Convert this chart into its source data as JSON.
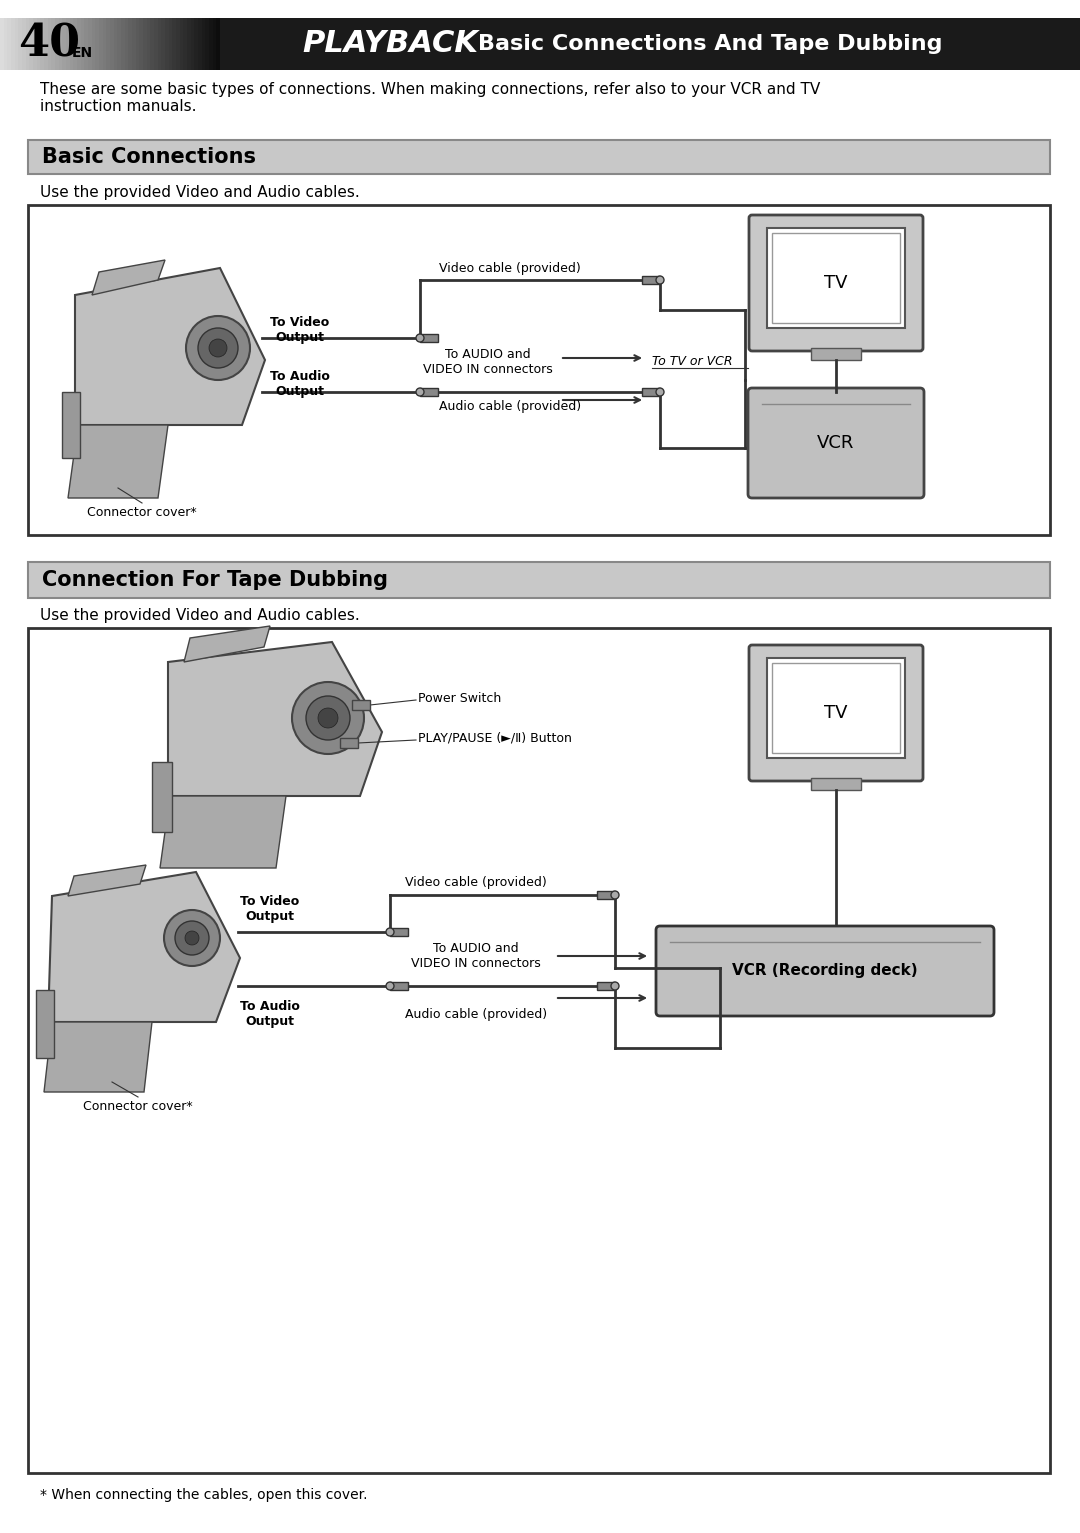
{
  "page_bg": "#ffffff",
  "header_page_num": "40",
  "header_page_sub": "EN",
  "header_playback": "PLAYBACK",
  "header_subtitle": " Basic Connections And Tape Dubbing",
  "intro_text": "These are some basic types of connections. When making connections, refer also to your VCR and TV\ninstruction manuals.",
  "section1_title": "Basic Connections",
  "section1_subtitle": "Use the provided Video and Audio cables.",
  "section2_title": "Connection For Tape Dubbing",
  "section2_subtitle": "Use the provided Video and Audio cables.",
  "footer_note": "* When connecting the cables, open this cover.",
  "section_header_bg": "#cccccc",
  "box_border": "#333333",
  "diagram1": {
    "labels": {
      "to_video_output": "To Video\nOutput",
      "video_cable": "Video cable (provided)",
      "to_audio_and_video": "To AUDIO and\nVIDEO IN connectors",
      "to_tv_or_vcr": "To TV or VCR",
      "to_audio_output": "To Audio\nOutput",
      "audio_cable": "Audio cable (provided)",
      "connector_cover": "Connector cover*",
      "tv_label": "TV",
      "vcr_label": "VCR"
    }
  },
  "diagram2": {
    "labels": {
      "power_switch": "Power Switch",
      "play_pause": "PLAY/PAUSE (►/Ⅱ) Button",
      "to_video_output": "To Video\nOutput",
      "video_cable": "Video cable (provided)",
      "to_audio_and_video": "To AUDIO and\nVIDEO IN connectors",
      "to_audio_output": "To Audio\nOutput",
      "audio_cable": "Audio cable (provided)",
      "connector_cover": "Connector cover*",
      "tv_label": "TV",
      "vcr_label": "VCR (Recording deck)"
    }
  }
}
